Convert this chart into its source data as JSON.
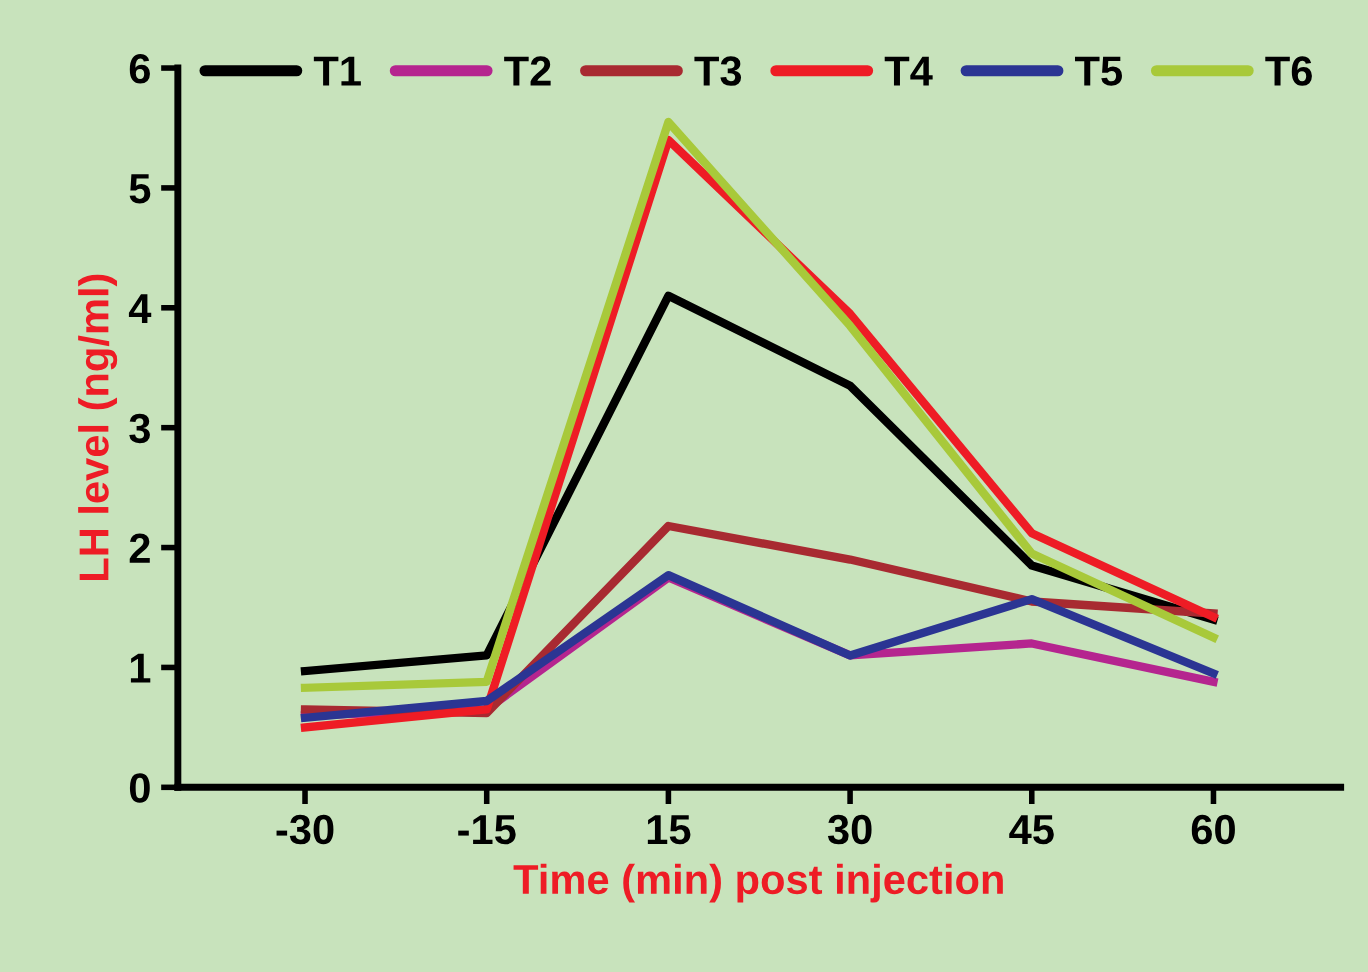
{
  "chart_data": {
    "type": "line",
    "xlabel": "Time (min) post injection",
    "ylabel": "LH level (ng/ml)",
    "categories": [
      "-30",
      "-15",
      "15",
      "30",
      "45",
      "60"
    ],
    "ylim": [
      0,
      6
    ],
    "yticks": [
      0,
      1,
      2,
      3,
      4,
      5,
      6
    ],
    "grid": false,
    "legend": "top",
    "marker": "none",
    "line_style": "solid",
    "series": [
      {
        "name": "T1",
        "color": "#000000",
        "values": [
          0.97,
          1.1,
          4.1,
          3.35,
          1.85,
          1.4
        ]
      },
      {
        "name": "T2",
        "color": "#b5258f",
        "values": [
          0.6,
          0.65,
          1.75,
          1.1,
          1.2,
          0.88
        ]
      },
      {
        "name": "T3",
        "color": "#a82a31",
        "values": [
          0.65,
          0.62,
          2.18,
          1.9,
          1.55,
          1.45
        ]
      },
      {
        "name": "T4",
        "color": "#ee1c25",
        "values": [
          0.5,
          0.65,
          5.4,
          3.95,
          2.12,
          1.42
        ]
      },
      {
        "name": "T5",
        "color": "#2b3593",
        "values": [
          0.58,
          0.72,
          1.77,
          1.1,
          1.57,
          0.95
        ]
      },
      {
        "name": "T6",
        "color": "#a8c93a",
        "values": [
          0.83,
          0.88,
          5.55,
          3.85,
          1.95,
          1.25
        ]
      }
    ]
  }
}
